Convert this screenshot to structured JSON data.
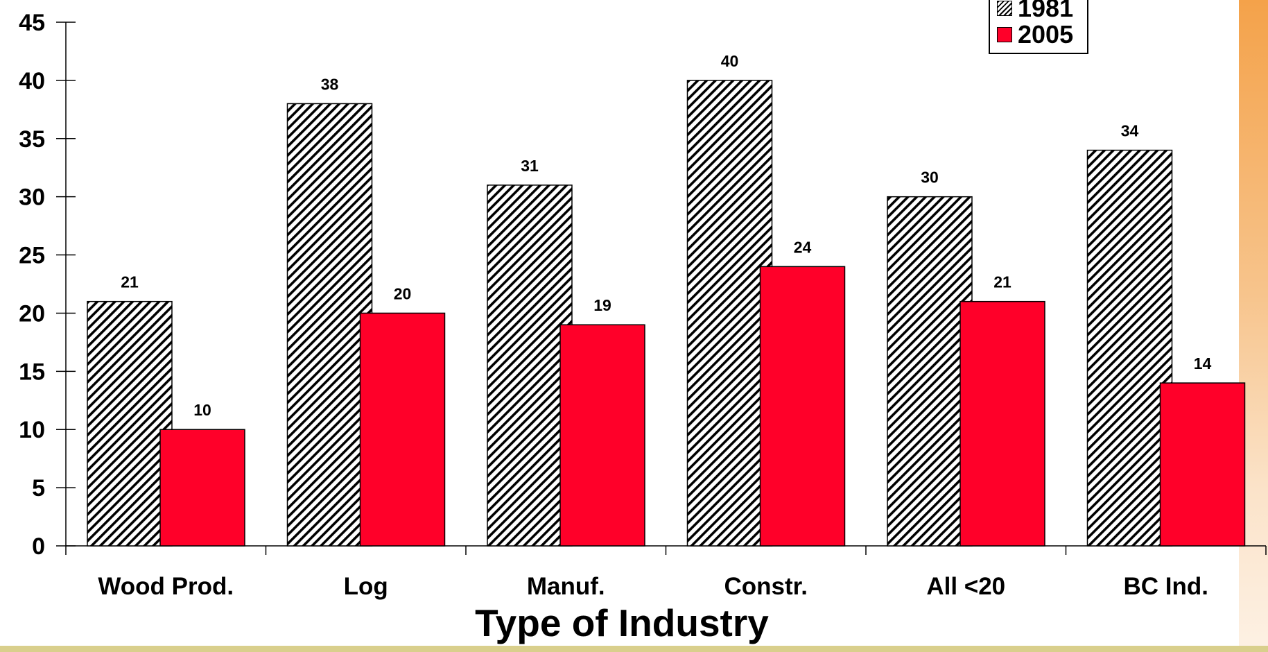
{
  "chart_data": {
    "type": "bar",
    "title": "",
    "xlabel": "Type of Industry",
    "ylabel": "",
    "categories": [
      "Wood Prod.",
      "Log",
      "Manuf.",
      "Constr.",
      "All <20",
      "BC Ind."
    ],
    "series": [
      {
        "name": "1981",
        "values": [
          21,
          38,
          31,
          40,
          30,
          34
        ],
        "style": "hatched",
        "color": "#000000"
      },
      {
        "name": "2005",
        "values": [
          10,
          20,
          19,
          24,
          21,
          14
        ],
        "style": "solid",
        "color": "#ff0029"
      }
    ],
    "ylim": [
      0,
      45
    ],
    "yticks": [
      0,
      5,
      10,
      15,
      20,
      25,
      30,
      35,
      40,
      45
    ],
    "grid": false,
    "legend": "top-right"
  },
  "legend": {
    "label_1981": "1981",
    "label_2005": "2005"
  }
}
